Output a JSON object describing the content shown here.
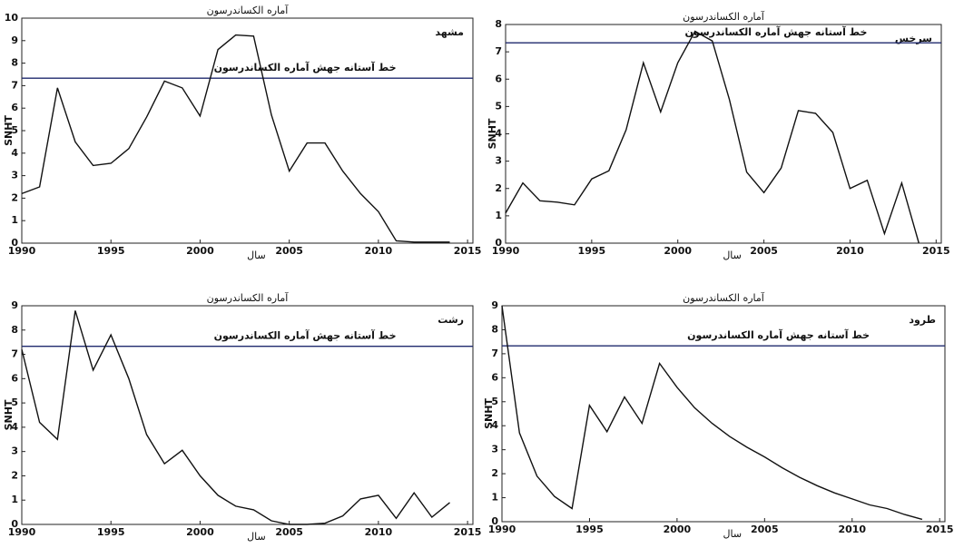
{
  "chart_data": [
    {
      "type": "line",
      "title": "آماره الکساندرسون",
      "label": "مشهد",
      "xlabel": "سال",
      "ylabel": "SNHT",
      "x": [
        1990,
        1991,
        1992,
        1993,
        1994,
        1995,
        1996,
        1997,
        1998,
        1999,
        2000,
        2001,
        2002,
        2003,
        2004,
        2005,
        2006,
        2007,
        2008,
        2009,
        2010,
        2011,
        2012,
        2013,
        2014
      ],
      "series": [
        {
          "name": "SNHT",
          "color": "#111111",
          "values": [
            2.2,
            2.5,
            6.9,
            4.5,
            3.45,
            3.55,
            4.2,
            5.6,
            7.2,
            6.9,
            5.65,
            8.6,
            9.25,
            9.2,
            5.7,
            3.2,
            4.45,
            4.45,
            3.2,
            2.2,
            1.4,
            0.1,
            0.05,
            0.05,
            0.05
          ]
        }
      ],
      "threshold": {
        "value": 7.33,
        "label": "خط آستانه جهش آماره الکساندرسون",
        "color": "#1f2a6e"
      },
      "xlim": [
        1990,
        2015.3
      ],
      "xticks": [
        1990,
        1995,
        2000,
        2005,
        2010,
        2015
      ],
      "ylim": [
        0,
        10
      ],
      "yticks": [
        0,
        1,
        2,
        3,
        4,
        5,
        6,
        7,
        8,
        9,
        10
      ]
    },
    {
      "type": "line",
      "title": "آماره الکساندرسون",
      "label": "سرخس",
      "xlabel": "سال",
      "ylabel": "SNHT",
      "x": [
        1990,
        1991,
        1992,
        1993,
        1994,
        1995,
        1996,
        1997,
        1998,
        1999,
        2000,
        2001,
        2002,
        2003,
        2004,
        2005,
        2006,
        2007,
        2008,
        2009,
        2010,
        2011,
        2012,
        2013,
        2014
      ],
      "series": [
        {
          "name": "SNHT",
          "color": "#111111",
          "values": [
            1.1,
            2.2,
            1.55,
            1.5,
            1.4,
            2.35,
            2.65,
            4.15,
            6.6,
            4.8,
            6.6,
            7.75,
            7.4,
            5.25,
            2.6,
            1.85,
            2.75,
            4.85,
            4.75,
            4.05,
            2.0,
            2.3,
            0.35,
            2.2,
            0
          ]
        }
      ],
      "threshold": {
        "value": 7.33,
        "label": "خط آستانه جهش آماره الکساندرسون",
        "color": "#1f2a6e"
      },
      "xlim": [
        1990,
        2015.3
      ],
      "xticks": [
        1990,
        1995,
        2000,
        2005,
        2010,
        2015
      ],
      "ylim": [
        0,
        8
      ],
      "yticks": [
        0,
        1,
        2,
        3,
        4,
        5,
        6,
        7,
        8
      ]
    },
    {
      "type": "line",
      "title": "آماره الکساندرسون",
      "label": "رشت",
      "xlabel": "سال",
      "ylabel": "SNHT",
      "x": [
        1990,
        1991,
        1992,
        1993,
        1994,
        1995,
        1996,
        1997,
        1998,
        1999,
        2000,
        2001,
        2002,
        2003,
        2004,
        2005,
        2006,
        2007,
        2008,
        2009,
        2010,
        2011,
        2012,
        2013,
        2014
      ],
      "series": [
        {
          "name": "SNHT",
          "color": "#111111",
          "values": [
            7.2,
            4.2,
            3.5,
            8.8,
            6.35,
            7.8,
            6.0,
            3.7,
            2.5,
            3.05,
            2.0,
            1.2,
            0.75,
            0.6,
            0.15,
            0.0,
            0.0,
            0.05,
            0.35,
            1.05,
            1.2,
            0.25,
            1.3,
            0.3,
            0.9
          ]
        }
      ],
      "threshold": {
        "value": 7.33,
        "label": "خط آستانه جهش آماره الکساندرسون",
        "color": "#1f2a6e"
      },
      "xlim": [
        1990,
        2015.3
      ],
      "xticks": [
        1990,
        1995,
        2000,
        2005,
        2010,
        2015
      ],
      "ylim": [
        0,
        9
      ],
      "yticks": [
        0,
        1,
        2,
        3,
        4,
        5,
        6,
        7,
        8,
        9
      ]
    },
    {
      "type": "line",
      "title": "آماره الکساندرسون",
      "label": "طرود",
      "xlabel": "سال",
      "ylabel": "SNHT",
      "x": [
        1990,
        1991,
        1992,
        1993,
        1994,
        1995,
        1996,
        1997,
        1998,
        1999,
        2000,
        2001,
        2002,
        2003,
        2004,
        2005,
        2006,
        2007,
        2008,
        2009,
        2010,
        2011,
        2012,
        2013,
        2014
      ],
      "series": [
        {
          "name": "SNHT",
          "color": "#111111",
          "values": [
            9.0,
            3.7,
            1.9,
            1.05,
            0.55,
            4.85,
            3.75,
            5.2,
            4.1,
            6.6,
            5.6,
            4.75,
            4.1,
            3.55,
            3.1,
            2.7,
            2.25,
            1.85,
            1.5,
            1.2,
            0.95,
            0.7,
            0.55,
            0.3,
            0.1
          ]
        }
      ],
      "threshold": {
        "value": 7.33,
        "label": "خط آستانه جهش آماره الکساندرسون",
        "color": "#1f2a6e"
      },
      "xlim": [
        1990,
        2015.3
      ],
      "xticks": [
        1990,
        1995,
        2000,
        2005,
        2010,
        2015
      ],
      "ylim": [
        0,
        9
      ],
      "yticks": [
        0,
        1,
        2,
        3,
        4,
        5,
        6,
        7,
        8,
        9
      ]
    }
  ]
}
